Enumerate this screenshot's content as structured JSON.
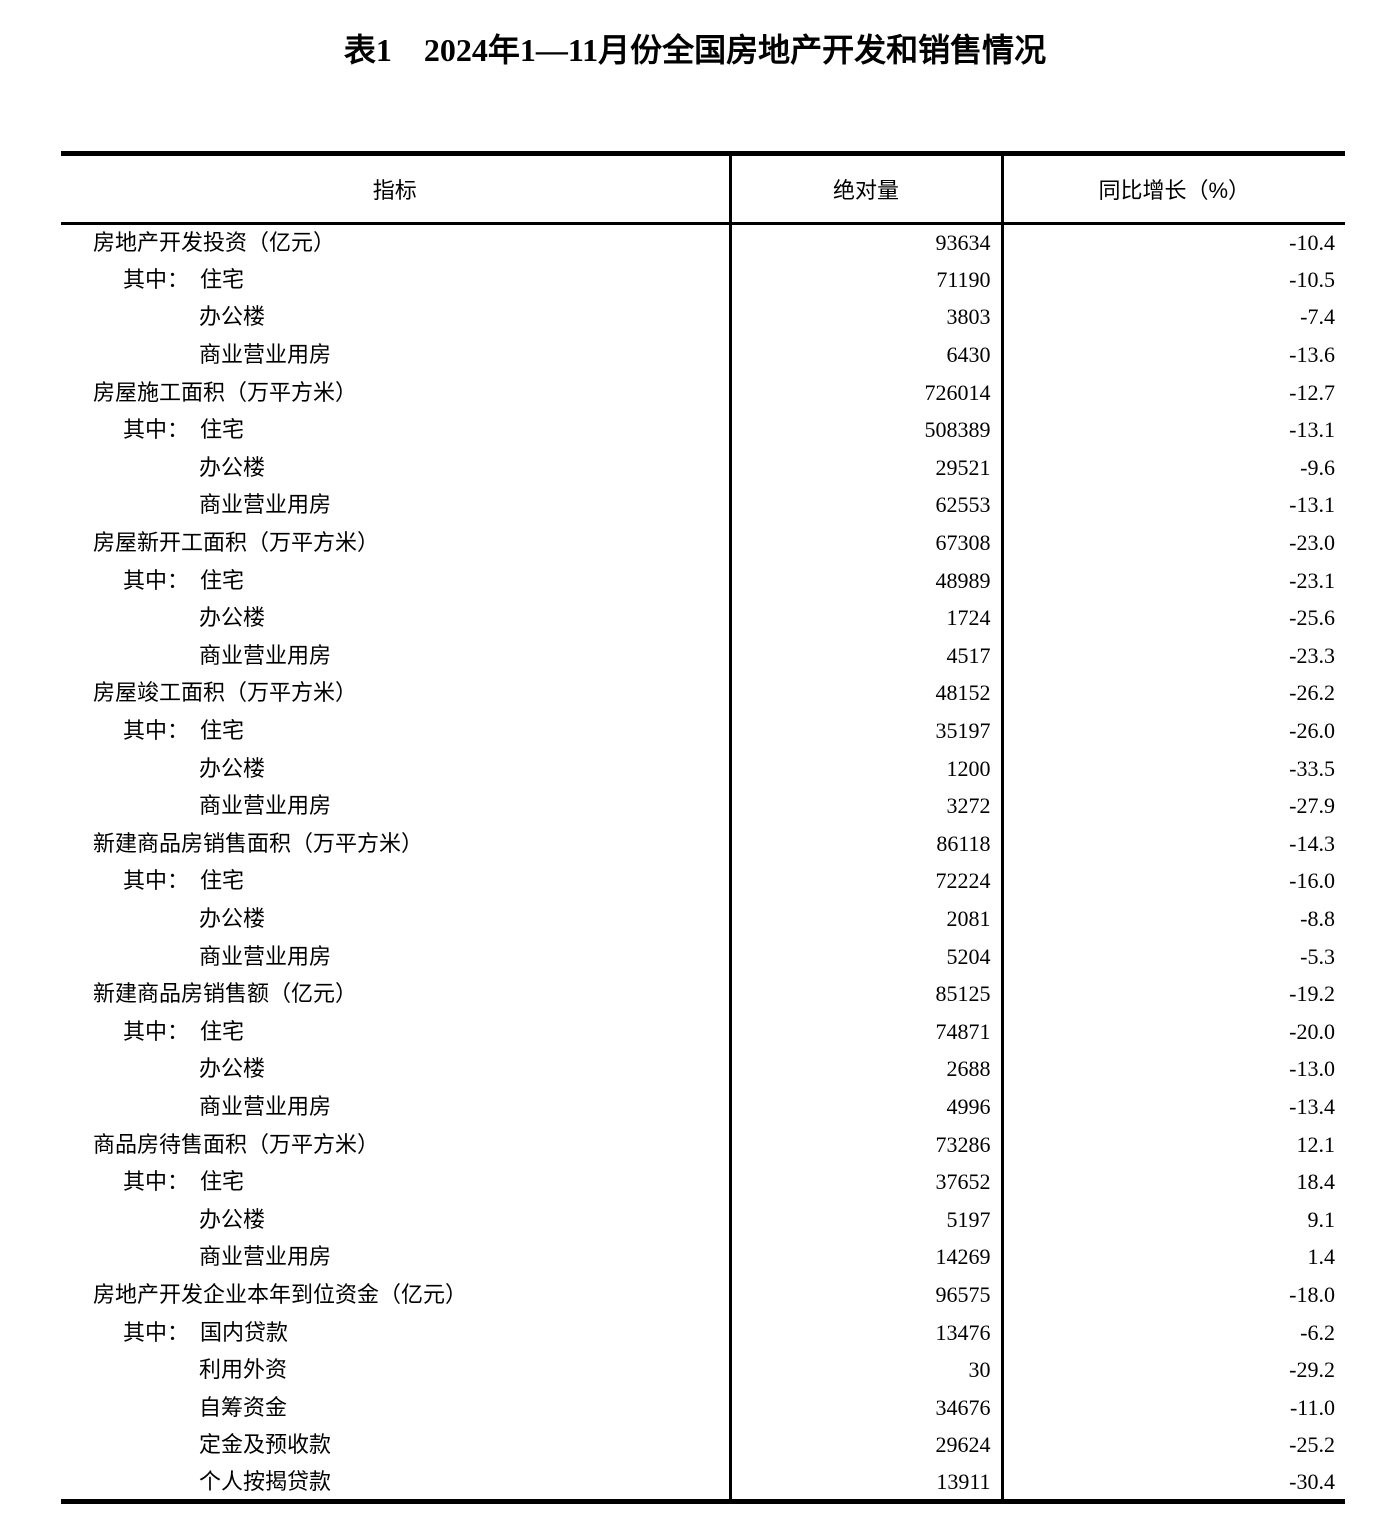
{
  "page": {
    "title": "表1　2024年1—11月份全国房地产开发和销售情况"
  },
  "colors": {
    "text": "#000000",
    "background": "#ffffff",
    "border": "#000000"
  },
  "table": {
    "columns": [
      "指标",
      "绝对量",
      "同比增长（%）"
    ],
    "rows": [
      {
        "level": 1,
        "label": "房地产开发投资（亿元）",
        "value": "93634",
        "growth": "-10.4"
      },
      {
        "level": 2,
        "prefix": "其中：",
        "label": "住宅",
        "value": "71190",
        "growth": "-10.5"
      },
      {
        "level": 3,
        "label": "办公楼",
        "value": "3803",
        "growth": "-7.4"
      },
      {
        "level": 3,
        "label": "商业营业用房",
        "value": "6430",
        "growth": "-13.6"
      },
      {
        "level": 1,
        "label": "房屋施工面积（万平方米）",
        "value": "726014",
        "growth": "-12.7"
      },
      {
        "level": 2,
        "prefix": "其中：",
        "label": "住宅",
        "value": "508389",
        "growth": "-13.1"
      },
      {
        "level": 3,
        "label": "办公楼",
        "value": "29521",
        "growth": "-9.6"
      },
      {
        "level": 3,
        "label": "商业营业用房",
        "value": "62553",
        "growth": "-13.1"
      },
      {
        "level": 1,
        "label": "房屋新开工面积（万平方米）",
        "value": "67308",
        "growth": "-23.0"
      },
      {
        "level": 2,
        "prefix": "其中：",
        "label": "住宅",
        "value": "48989",
        "growth": "-23.1"
      },
      {
        "level": 3,
        "label": "办公楼",
        "value": "1724",
        "growth": "-25.6"
      },
      {
        "level": 3,
        "label": "商业营业用房",
        "value": "4517",
        "growth": "-23.3"
      },
      {
        "level": 1,
        "label": "房屋竣工面积（万平方米）",
        "value": "48152",
        "growth": "-26.2"
      },
      {
        "level": 2,
        "prefix": "其中：",
        "label": "住宅",
        "value": "35197",
        "growth": "-26.0"
      },
      {
        "level": 3,
        "label": "办公楼",
        "value": "1200",
        "growth": "-33.5"
      },
      {
        "level": 3,
        "label": "商业营业用房",
        "value": "3272",
        "growth": "-27.9"
      },
      {
        "level": 1,
        "label": "新建商品房销售面积（万平方米）",
        "value": "86118",
        "growth": "-14.3"
      },
      {
        "level": 2,
        "prefix": "其中：",
        "label": "住宅",
        "value": "72224",
        "growth": "-16.0"
      },
      {
        "level": 3,
        "label": "办公楼",
        "value": "2081",
        "growth": "-8.8"
      },
      {
        "level": 3,
        "label": "商业营业用房",
        "value": "5204",
        "growth": "-5.3"
      },
      {
        "level": 1,
        "label": "新建商品房销售额（亿元）",
        "value": "85125",
        "growth": "-19.2"
      },
      {
        "level": 2,
        "prefix": "其中：",
        "label": "住宅",
        "value": "74871",
        "growth": "-20.0"
      },
      {
        "level": 3,
        "label": "办公楼",
        "value": "2688",
        "growth": "-13.0"
      },
      {
        "level": 3,
        "label": "商业营业用房",
        "value": "4996",
        "growth": "-13.4"
      },
      {
        "level": 1,
        "label": "商品房待售面积（万平方米）",
        "value": "73286",
        "growth": "12.1"
      },
      {
        "level": 2,
        "prefix": "其中：",
        "label": "住宅",
        "value": "37652",
        "growth": "18.4"
      },
      {
        "level": 3,
        "label": "办公楼",
        "value": "5197",
        "growth": "9.1"
      },
      {
        "level": 3,
        "label": "商业营业用房",
        "value": "14269",
        "growth": "1.4"
      },
      {
        "level": 1,
        "label": "房地产开发企业本年到位资金（亿元）",
        "value": "96575",
        "growth": "-18.0"
      },
      {
        "level": 2,
        "prefix": "其中：",
        "label": "国内贷款",
        "value": "13476",
        "growth": "-6.2"
      },
      {
        "level": 3,
        "label": "利用外资",
        "value": "30",
        "growth": "-29.2"
      },
      {
        "level": 3,
        "label": "自筹资金",
        "value": "34676",
        "growth": "-11.0"
      },
      {
        "level": 3,
        "label": "定金及预收款",
        "value": "29624",
        "growth": "-25.2"
      },
      {
        "level": 3,
        "label": "个人按揭贷款",
        "value": "13911",
        "growth": "-30.4"
      }
    ]
  }
}
